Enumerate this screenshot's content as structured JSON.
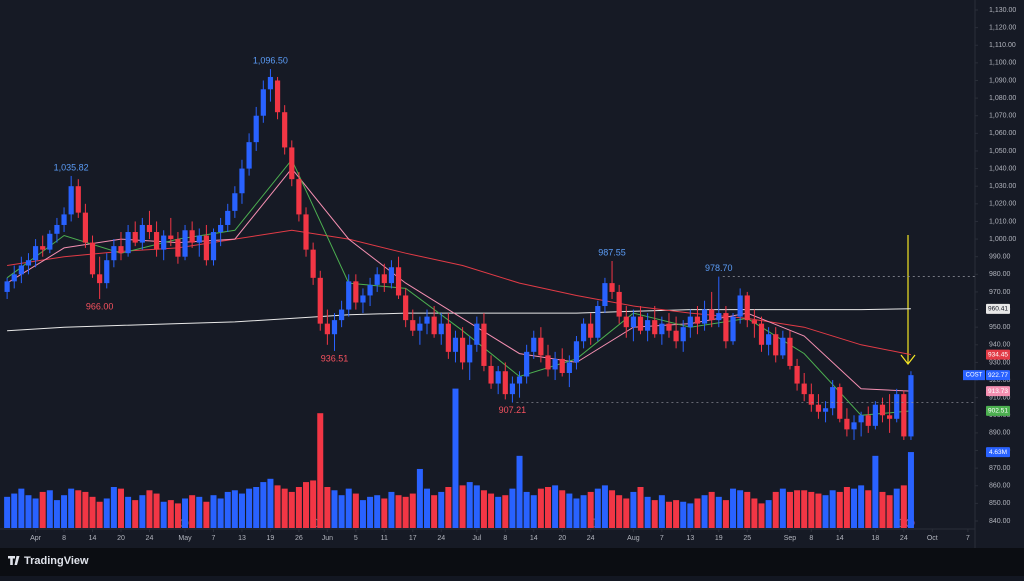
{
  "chart_data": {
    "type": "candlestick",
    "symbol": "COST",
    "brand": "TradingView",
    "up_color": "#2962ff",
    "down_color": "#f23645",
    "grid": false,
    "xlim": [
      -1,
      136
    ],
    "ylim": [
      840,
      1130
    ],
    "yticks": [
      {
        "value": 840,
        "label": "840.00"
      },
      {
        "value": 850,
        "label": "850.00"
      },
      {
        "value": 860,
        "label": "860.00"
      },
      {
        "value": 870,
        "label": "870.00"
      },
      {
        "value": 880,
        "label": "880.00"
      },
      {
        "value": 890,
        "label": "890.00"
      },
      {
        "value": 900,
        "label": "900.00"
      },
      {
        "value": 910,
        "label": "910.00"
      },
      {
        "value": 920,
        "label": "920.00"
      },
      {
        "value": 930,
        "label": "930.00"
      },
      {
        "value": 940,
        "label": "940.00"
      },
      {
        "value": 950,
        "label": "950.00"
      },
      {
        "value": 960,
        "label": "960.00"
      },
      {
        "value": 970,
        "label": "970.00"
      },
      {
        "value": 980,
        "label": "980.00"
      },
      {
        "value": 990,
        "label": "990.00"
      },
      {
        "value": 1000,
        "label": "1,000.00"
      },
      {
        "value": 1010,
        "label": "1,010.00"
      },
      {
        "value": 1020,
        "label": "1,020.00"
      },
      {
        "value": 1030,
        "label": "1,030.00"
      },
      {
        "value": 1040,
        "label": "1,040.00"
      },
      {
        "value": 1050,
        "label": "1,050.00"
      },
      {
        "value": 1060,
        "label": "1,060.00"
      },
      {
        "value": 1070,
        "label": "1,070.00"
      },
      {
        "value": 1080,
        "label": "1,080.00"
      },
      {
        "value": 1090,
        "label": "1,090.00"
      },
      {
        "value": 1100,
        "label": "1,100.00"
      },
      {
        "value": 1110,
        "label": "1,110.00"
      },
      {
        "value": 1120,
        "label": "1,120.00"
      },
      {
        "value": 1130,
        "label": "1,130.00"
      }
    ],
    "xticks": [
      {
        "value": 4,
        "label": "Apr"
      },
      {
        "value": 8,
        "label": "8"
      },
      {
        "value": 12,
        "label": "14"
      },
      {
        "value": 16,
        "label": "20"
      },
      {
        "value": 20,
        "label": "24"
      },
      {
        "value": 25,
        "label": "May"
      },
      {
        "value": 29,
        "label": "7"
      },
      {
        "value": 33,
        "label": "13"
      },
      {
        "value": 37,
        "label": "19"
      },
      {
        "value": 41,
        "label": "26"
      },
      {
        "value": 45,
        "label": "Jun"
      },
      {
        "value": 49,
        "label": "5"
      },
      {
        "value": 53,
        "label": "11"
      },
      {
        "value": 57,
        "label": "17"
      },
      {
        "value": 61,
        "label": "24"
      },
      {
        "value": 66,
        "label": "Jul"
      },
      {
        "value": 70,
        "label": "8"
      },
      {
        "value": 74,
        "label": "14"
      },
      {
        "value": 78,
        "label": "20"
      },
      {
        "value": 82,
        "label": "24"
      },
      {
        "value": 88,
        "label": "Aug"
      },
      {
        "value": 92,
        "label": "7"
      },
      {
        "value": 96,
        "label": "13"
      },
      {
        "value": 100,
        "label": "19"
      },
      {
        "value": 104,
        "label": "25"
      },
      {
        "value": 110,
        "label": "Sep"
      },
      {
        "value": 113,
        "label": "8"
      },
      {
        "value": 117,
        "label": "14"
      },
      {
        "value": 122,
        "label": "18"
      },
      {
        "value": 126,
        "label": "24"
      },
      {
        "value": 130,
        "label": "Oct"
      },
      {
        "value": 135,
        "label": "7"
      }
    ],
    "ohlc": [
      [
        970,
        978,
        966,
        976
      ],
      [
        976,
        985,
        972,
        980
      ],
      [
        980,
        990,
        975,
        985
      ],
      [
        985,
        992,
        980,
        988
      ],
      [
        988,
        1000,
        984,
        996
      ],
      [
        996,
        1002,
        990,
        994
      ],
      [
        994,
        1005,
        992,
        1003
      ],
      [
        1003,
        1012,
        998,
        1008
      ],
      [
        1008,
        1018,
        1004,
        1014
      ],
      [
        1014,
        1035.82,
        1010,
        1030
      ],
      [
        1030,
        1034,
        1012,
        1015
      ],
      [
        1015,
        1020,
        995,
        998
      ],
      [
        998,
        1002,
        978,
        980
      ],
      [
        980,
        990,
        966,
        975
      ],
      [
        975,
        992,
        972,
        988
      ],
      [
        988,
        1000,
        984,
        996
      ],
      [
        996,
        1004,
        988,
        992
      ],
      [
        992,
        1008,
        990,
        1004
      ],
      [
        1004,
        1010,
        996,
        998
      ],
      [
        998,
        1012,
        994,
        1008
      ],
      [
        1008,
        1016,
        1000,
        1004
      ],
      [
        1004,
        1010,
        990,
        994
      ],
      [
        994,
        1005,
        988,
        1002
      ],
      [
        1002,
        1012,
        996,
        1000
      ],
      [
        1000,
        1004,
        986,
        990
      ],
      [
        990,
        1008,
        988,
        1005
      ],
      [
        1005,
        1010,
        995,
        998
      ],
      [
        998,
        1006,
        990,
        1002
      ],
      [
        1002,
        1008,
        985,
        988
      ],
      [
        988,
        1006,
        985,
        1004
      ],
      [
        1004,
        1012,
        996,
        1008
      ],
      [
        1008,
        1020,
        1004,
        1016
      ],
      [
        1016,
        1030,
        1012,
        1026
      ],
      [
        1026,
        1045,
        1020,
        1040
      ],
      [
        1040,
        1060,
        1036,
        1055
      ],
      [
        1055,
        1075,
        1050,
        1070
      ],
      [
        1070,
        1090,
        1066,
        1085
      ],
      [
        1085,
        1096.5,
        1078,
        1092
      ],
      [
        1090,
        1092,
        1068,
        1072
      ],
      [
        1072,
        1076,
        1048,
        1052
      ],
      [
        1052,
        1056,
        1030,
        1034
      ],
      [
        1034,
        1038,
        1010,
        1014
      ],
      [
        1014,
        1018,
        990,
        994
      ],
      [
        994,
        998,
        974,
        978
      ],
      [
        978,
        982,
        948,
        952
      ],
      [
        952,
        960,
        940,
        946
      ],
      [
        946,
        958,
        936.51,
        954
      ],
      [
        954,
        965,
        950,
        960
      ],
      [
        960,
        980,
        956,
        976
      ],
      [
        976,
        980,
        960,
        964
      ],
      [
        964,
        972,
        958,
        968
      ],
      [
        968,
        978,
        962,
        974
      ],
      [
        974,
        984,
        970,
        980
      ],
      [
        980,
        986,
        970,
        975
      ],
      [
        975,
        988,
        972,
        984
      ],
      [
        984,
        990,
        966,
        968
      ],
      [
        968,
        972,
        950,
        954
      ],
      [
        954,
        960,
        945,
        948
      ],
      [
        948,
        956,
        940,
        952
      ],
      [
        952,
        960,
        946,
        956
      ],
      [
        956,
        962,
        944,
        946
      ],
      [
        946,
        958,
        940,
        952
      ],
      [
        952,
        958,
        932,
        936
      ],
      [
        936,
        948,
        930,
        944
      ],
      [
        944,
        950,
        926,
        930
      ],
      [
        930,
        945,
        920,
        940
      ],
      [
        940,
        956,
        936,
        952
      ],
      [
        952,
        958,
        925,
        928
      ],
      [
        928,
        934,
        915,
        918
      ],
      [
        918,
        928,
        912,
        925
      ],
      [
        925,
        930,
        909,
        912
      ],
      [
        912,
        922,
        907.21,
        918
      ],
      [
        918,
        925,
        910,
        922
      ],
      [
        922,
        940,
        918,
        936
      ],
      [
        936,
        948,
        932,
        944
      ],
      [
        944,
        950,
        930,
        934
      ],
      [
        934,
        940,
        922,
        926
      ],
      [
        926,
        936,
        920,
        932
      ],
      [
        932,
        938,
        922,
        924
      ],
      [
        924,
        934,
        916,
        930
      ],
      [
        930,
        945,
        926,
        942
      ],
      [
        942,
        955,
        938,
        952
      ],
      [
        952,
        958,
        940,
        944
      ],
      [
        944,
        965,
        942,
        962
      ],
      [
        962,
        978,
        958,
        975
      ],
      [
        975,
        987.55,
        966,
        970
      ],
      [
        970,
        974,
        952,
        956
      ],
      [
        956,
        962,
        944,
        950
      ],
      [
        950,
        960,
        942,
        956
      ],
      [
        956,
        962,
        946,
        948
      ],
      [
        948,
        958,
        942,
        954
      ],
      [
        954,
        962,
        944,
        946
      ],
      [
        946,
        956,
        940,
        952
      ],
      [
        952,
        958,
        944,
        948
      ],
      [
        948,
        956,
        938,
        942
      ],
      [
        942,
        954,
        936,
        950
      ],
      [
        950,
        960,
        944,
        956
      ],
      [
        956,
        962,
        946,
        952
      ],
      [
        952,
        965,
        948,
        960
      ],
      [
        960,
        970,
        950,
        954
      ],
      [
        954,
        978.7,
        950,
        958
      ],
      [
        958,
        962,
        938,
        942
      ],
      [
        942,
        958,
        940,
        956
      ],
      [
        956,
        972,
        952,
        968
      ],
      [
        968,
        970,
        950,
        954
      ],
      [
        954,
        960,
        944,
        952
      ],
      [
        952,
        956,
        936,
        940
      ],
      [
        940,
        950,
        934,
        946
      ],
      [
        946,
        950,
        930,
        934
      ],
      [
        934,
        948,
        932,
        944
      ],
      [
        944,
        948,
        926,
        928
      ],
      [
        928,
        932,
        914,
        918
      ],
      [
        918,
        924,
        908,
        912
      ],
      [
        912,
        918,
        902,
        906
      ],
      [
        906,
        912,
        898,
        902
      ],
      [
        902,
        908,
        896,
        904
      ],
      [
        904,
        920,
        900,
        916
      ],
      [
        916,
        918,
        896,
        898
      ],
      [
        898,
        904,
        888,
        892
      ],
      [
        892,
        900,
        886,
        896
      ],
      [
        896,
        902,
        888,
        900
      ],
      [
        900,
        905,
        890,
        894
      ],
      [
        894,
        908,
        892,
        906
      ],
      [
        906,
        910,
        896,
        900
      ],
      [
        900,
        912,
        890,
        898
      ],
      [
        898,
        915,
        896,
        912
      ],
      [
        912,
        914,
        886,
        888
      ],
      [
        888,
        925,
        886,
        922.77
      ]
    ],
    "volume": {
      "values": [
        1.9,
        2.1,
        2.4,
        2.0,
        1.8,
        2.2,
        2.3,
        1.7,
        2.0,
        2.4,
        2.3,
        2.2,
        1.9,
        1.6,
        1.8,
        2.5,
        2.4,
        1.9,
        1.7,
        2.0,
        2.3,
        2.1,
        1.6,
        1.7,
        1.5,
        1.8,
        2.0,
        1.9,
        1.6,
        2.0,
        1.8,
        2.2,
        2.3,
        2.1,
        2.4,
        2.5,
        2.8,
        3.0,
        2.6,
        2.4,
        2.2,
        2.5,
        2.8,
        2.9,
        7.0,
        2.5,
        2.3,
        2.0,
        2.4,
        2.1,
        1.7,
        1.9,
        2.0,
        1.8,
        2.2,
        2.0,
        1.9,
        2.1,
        3.6,
        2.4,
        2.0,
        2.2,
        2.5,
        8.5,
        2.6,
        2.8,
        2.6,
        2.3,
        2.1,
        1.9,
        2.0,
        2.4,
        4.4,
        2.2,
        2.0,
        2.4,
        2.5,
        2.6,
        2.3,
        2.1,
        1.8,
        2.0,
        2.2,
        2.4,
        2.6,
        2.3,
        2.0,
        1.8,
        2.2,
        2.5,
        1.9,
        1.7,
        2.0,
        1.6,
        1.7,
        1.6,
        1.5,
        1.8,
        2.0,
        2.2,
        1.9,
        1.7,
        2.4,
        2.3,
        2.2,
        1.8,
        1.5,
        1.7,
        2.2,
        2.4,
        2.2,
        2.3,
        2.3,
        2.2,
        2.1,
        2.0,
        2.3,
        2.2,
        2.5,
        2.4,
        2.6,
        2.3,
        4.4,
        2.2,
        2.0,
        2.4,
        2.6,
        4.63
      ],
      "last_label": "4.63M"
    },
    "moving_averages": [
      {
        "color": "#e8e8e8",
        "x": [
          0,
          8,
          16,
          24,
          32,
          40,
          48,
          56,
          64,
          72,
          80,
          88,
          96,
          104,
          112,
          120,
          127
        ],
        "values": [
          948,
          950,
          951,
          952,
          953,
          955,
          957,
          958,
          958,
          958,
          958,
          959,
          960,
          960,
          960,
          960,
          960.41
        ]
      },
      {
        "color": "#e23b46",
        "x": [
          0,
          8,
          16,
          24,
          32,
          40,
          48,
          56,
          64,
          72,
          80,
          88,
          96,
          104,
          112,
          120,
          127
        ],
        "values": [
          985,
          990,
          993,
          995,
          1000,
          1005,
          1000,
          992,
          985,
          975,
          968,
          962,
          958,
          955,
          950,
          940,
          934.45
        ]
      },
      {
        "color": "#f48fb1",
        "x": [
          0,
          8,
          16,
          24,
          32,
          40,
          48,
          56,
          64,
          72,
          80,
          88,
          96,
          104,
          112,
          120,
          127
        ],
        "values": [
          975,
          995,
          1000,
          998,
          1000,
          1040,
          1000,
          975,
          955,
          935,
          930,
          950,
          952,
          958,
          945,
          915,
          913.73
        ]
      },
      {
        "color": "#4caf50",
        "x": [
          0,
          8,
          16,
          24,
          32,
          40,
          48,
          56,
          64,
          72,
          80,
          88,
          96,
          104,
          112,
          120,
          127
        ],
        "values": [
          978,
          1002,
          992,
          1000,
          1005,
          1045,
          975,
          972,
          948,
          922,
          932,
          958,
          950,
          955,
          935,
          900,
          902.51
        ]
      }
    ],
    "annotations": [
      {
        "x": 9,
        "value": 1035.82,
        "label": "1,035.82",
        "position": "above",
        "color": "#5b9cf6"
      },
      {
        "x": 37,
        "value": 1096.5,
        "label": "1,096.50",
        "position": "above",
        "color": "#5b9cf6"
      },
      {
        "x": 13,
        "value": 966,
        "label": "966.00",
        "position": "below",
        "color": "#f7525f"
      },
      {
        "x": 46,
        "value": 936.51,
        "label": "936.51",
        "position": "below",
        "color": "#f7525f"
      },
      {
        "x": 71,
        "value": 907.21,
        "label": "907.21",
        "position": "below",
        "color": "#f7525f"
      },
      {
        "x": 85,
        "value": 987.55,
        "label": "987.55",
        "position": "above",
        "color": "#5b9cf6"
      },
      {
        "x": 100,
        "value": 978.7,
        "label": "978.70",
        "position": "above",
        "color": "#5b9cf6"
      }
    ]
  }
}
